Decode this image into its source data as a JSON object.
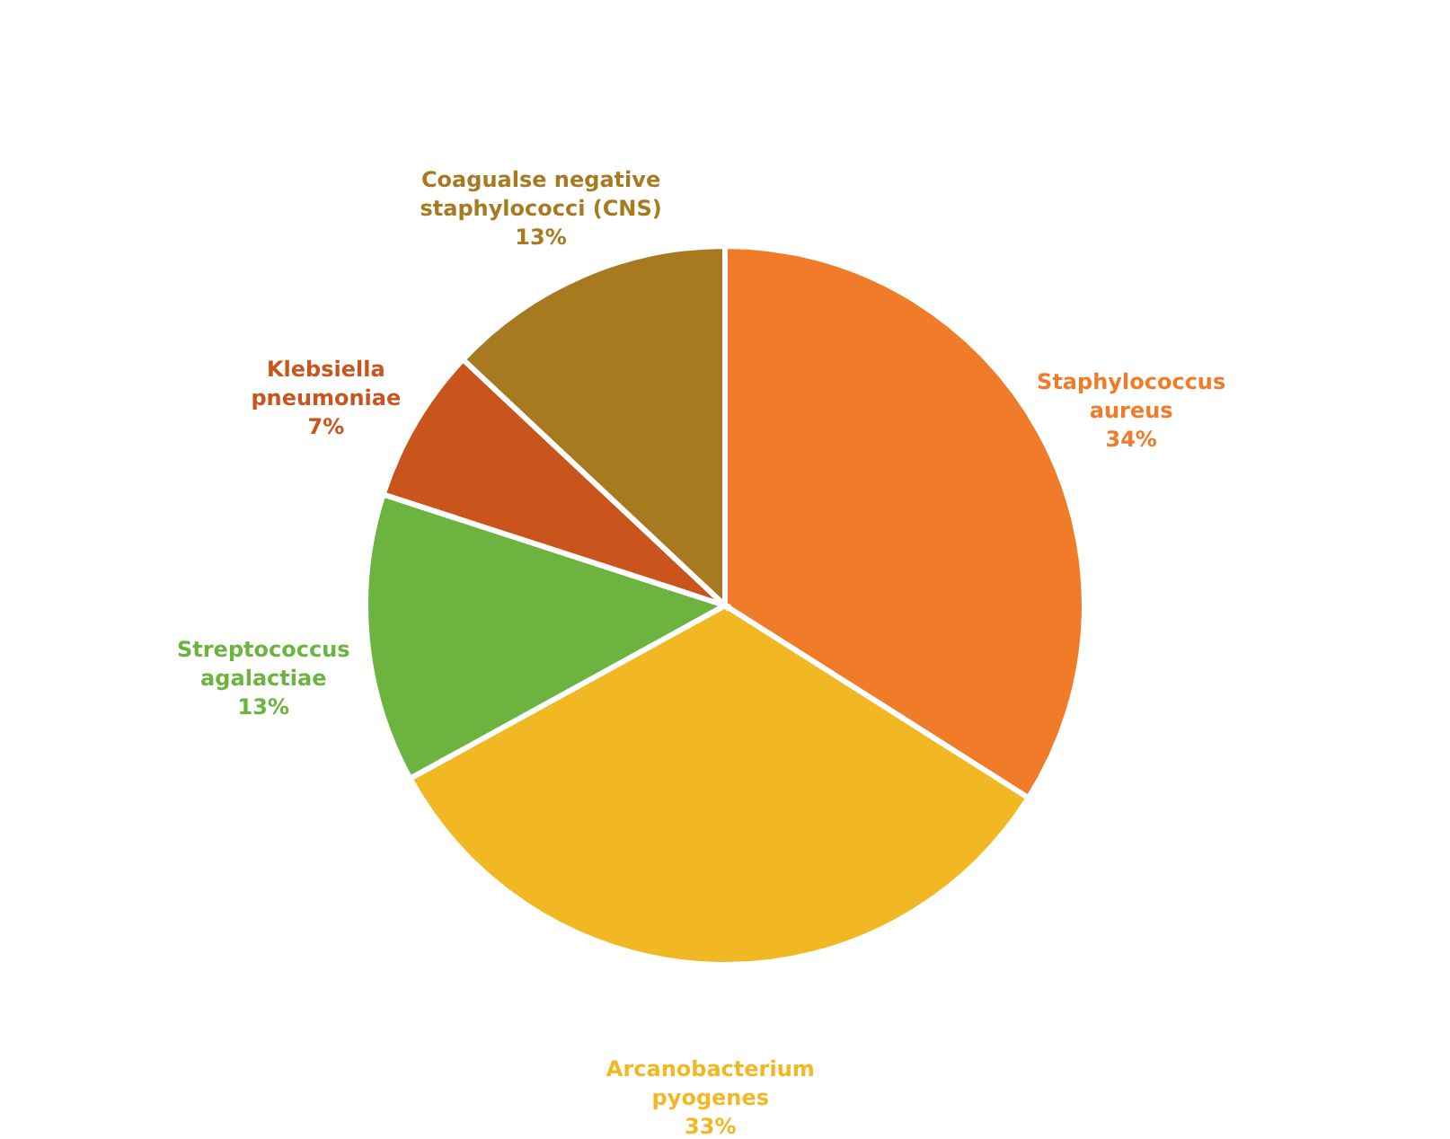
{
  "chart_data": {
    "type": "pie",
    "categories": [
      "Staphylococcus aureus",
      "Arcanobacterium pyogenes",
      "Streptococcus agalactiae",
      "Klebsiella pneumoniae",
      "Coagualse negative staphylococci (CNS)"
    ],
    "values": [
      34,
      33,
      13,
      7,
      13
    ],
    "colors": [
      "#f07c2a",
      "#f2b824",
      "#6db33f",
      "#c9541c",
      "#a77a1f"
    ],
    "value_labels": [
      "34%",
      "33%",
      "13%",
      "7%",
      "13%"
    ]
  }
}
